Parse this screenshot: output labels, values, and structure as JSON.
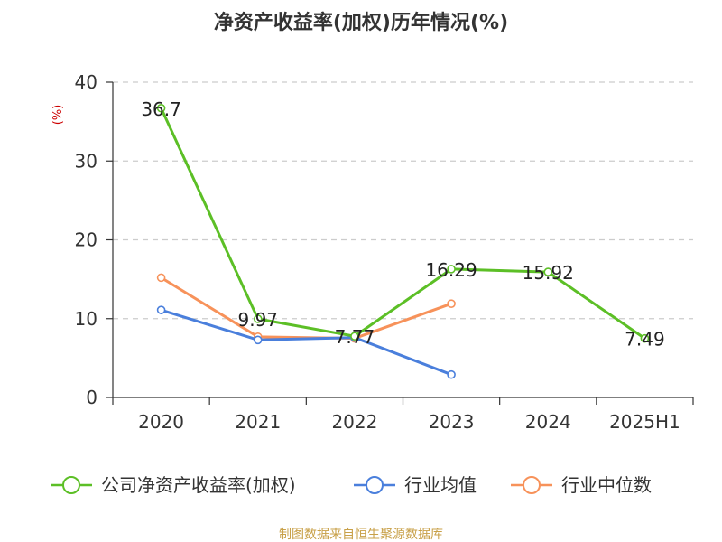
{
  "chart_data": {
    "type": "line",
    "title": "净资产收益率(加权)历年情况(%)",
    "ylabel": "(%)",
    "xlabel": "",
    "categories": [
      "2020",
      "2021",
      "2022",
      "2023",
      "2024",
      "2025H1"
    ],
    "ylim": [
      0,
      40
    ],
    "yticks": [
      0,
      10,
      20,
      30,
      40
    ],
    "grid": true,
    "legend_position": "bottom",
    "series": [
      {
        "name": "公司净资产收益率(加权)",
        "values": [
          36.7,
          9.97,
          7.77,
          16.29,
          15.92,
          7.49
        ],
        "color": "#5cbf26",
        "data_labels": [
          "36.7",
          "9.97",
          "7.77",
          "16.29",
          "15.92",
          "7.49"
        ]
      },
      {
        "name": "行业均值",
        "values": [
          11.1,
          7.3,
          7.6,
          2.9,
          null,
          null
        ],
        "color": "#4a7fdc"
      },
      {
        "name": "行业中位数",
        "values": [
          15.2,
          7.7,
          7.5,
          11.9,
          null,
          null
        ],
        "color": "#f7925a"
      }
    ]
  },
  "colors": {
    "axis": "#333333",
    "grid": "#cccccc",
    "unit_label": "#cc0000",
    "source_text": "#c8a048"
  },
  "source": "制图数据来自恒生聚源数据库"
}
